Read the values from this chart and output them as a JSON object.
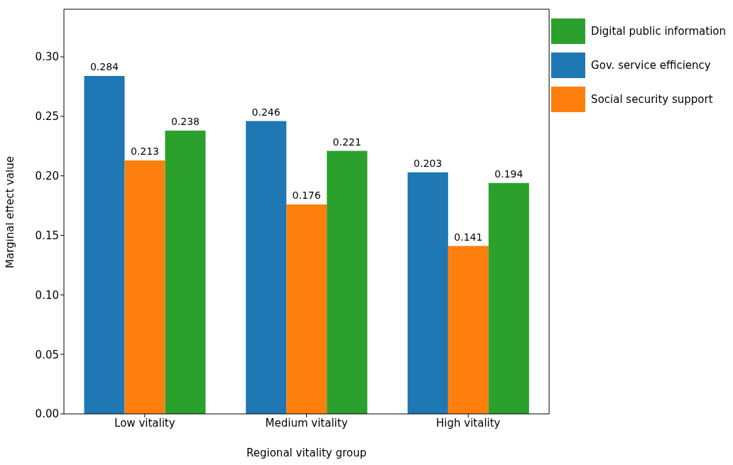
{
  "chart_data": {
    "type": "bar",
    "xlabel": "Regional vitality group",
    "ylabel": "Marginal effect value",
    "categories": [
      "Low vitality",
      "Medium vitality",
      "High vitality"
    ],
    "series": [
      {
        "name": "Gov. service efficiency",
        "color": "#1f77b4",
        "values": [
          0.284,
          0.246,
          0.203
        ]
      },
      {
        "name": "Social security support",
        "color": "#ff7f0e",
        "values": [
          0.213,
          0.176,
          0.141
        ]
      },
      {
        "name": "Digital public information",
        "color": "#2ca02c",
        "values": [
          0.238,
          0.221,
          0.194
        ]
      }
    ],
    "ylim": [
      0,
      0.34
    ],
    "yticks": [
      {
        "value": 0,
        "label": "0.00"
      },
      {
        "value": 0.05,
        "label": "0.05"
      },
      {
        "value": 0.1,
        "label": "0.10"
      },
      {
        "value": 0.15,
        "label": "0.15"
      },
      {
        "value": 0.2,
        "label": "0.20"
      },
      {
        "value": 0.25,
        "label": "0.25"
      },
      {
        "value": 0.3,
        "label": "0.30"
      }
    ],
    "data_labels": true,
    "grid": false,
    "legend": "top right"
  }
}
